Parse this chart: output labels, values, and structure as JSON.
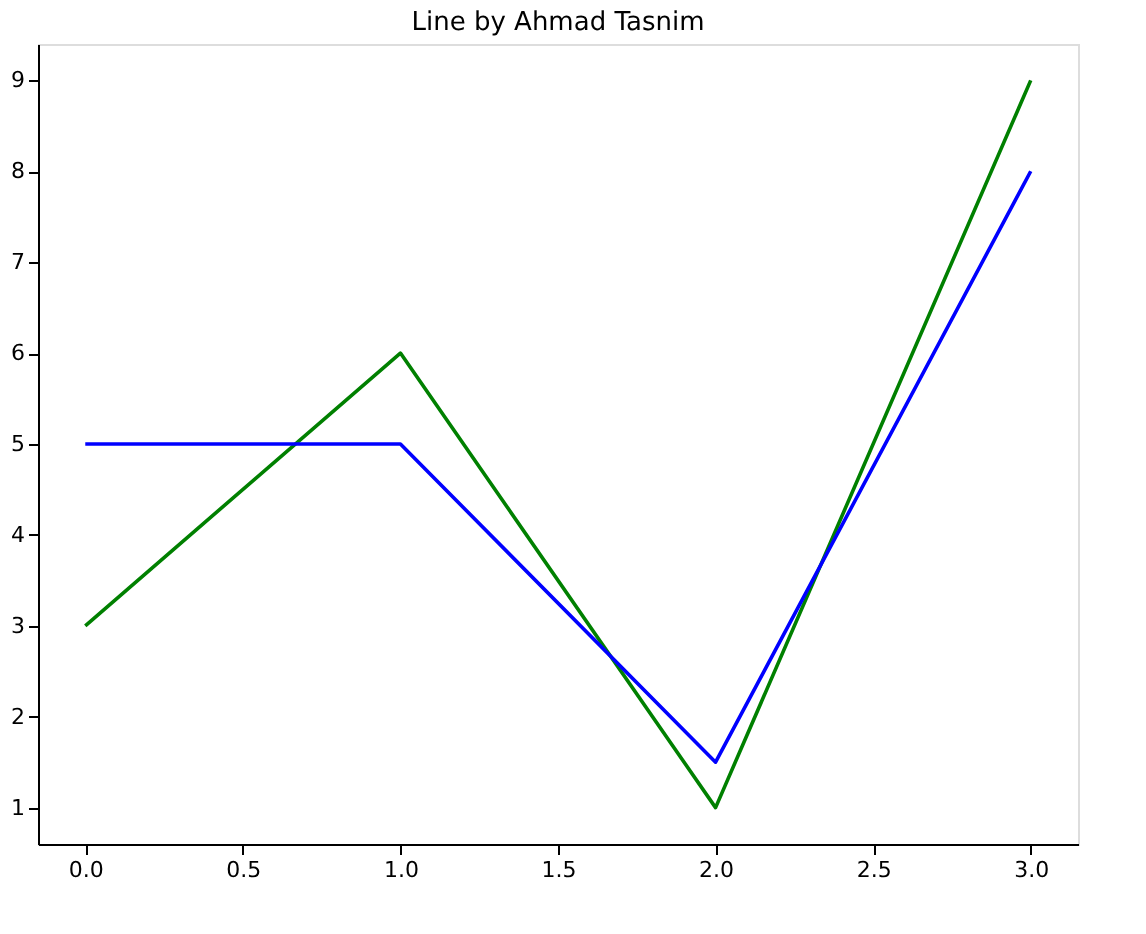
{
  "chart_data": {
    "type": "line",
    "title": "Line by Ahmad Tasnim",
    "x": [
      0,
      1,
      2,
      3
    ],
    "series": [
      {
        "color": "#008000",
        "values": [
          3,
          6,
          1,
          9
        ]
      },
      {
        "color": "#0000ff",
        "values": [
          5,
          5,
          1.5,
          8
        ]
      }
    ],
    "xlim": [
      -0.15,
      3.15
    ],
    "ylim": [
      0.6,
      9.4
    ],
    "xticks": [
      {
        "value": 0,
        "label": "0.0"
      },
      {
        "value": 0.5,
        "label": "0.5"
      },
      {
        "value": 1,
        "label": "1.0"
      },
      {
        "value": 1.5,
        "label": "1.5"
      },
      {
        "value": 2,
        "label": "2.0"
      },
      {
        "value": 2.5,
        "label": "2.5"
      },
      {
        "value": 3,
        "label": "3.0"
      }
    ],
    "yticks": [
      1,
      2,
      3,
      4,
      5,
      6,
      7,
      8,
      9
    ],
    "grid": false,
    "legend": false,
    "marker": "none",
    "line_style": "solid"
  }
}
